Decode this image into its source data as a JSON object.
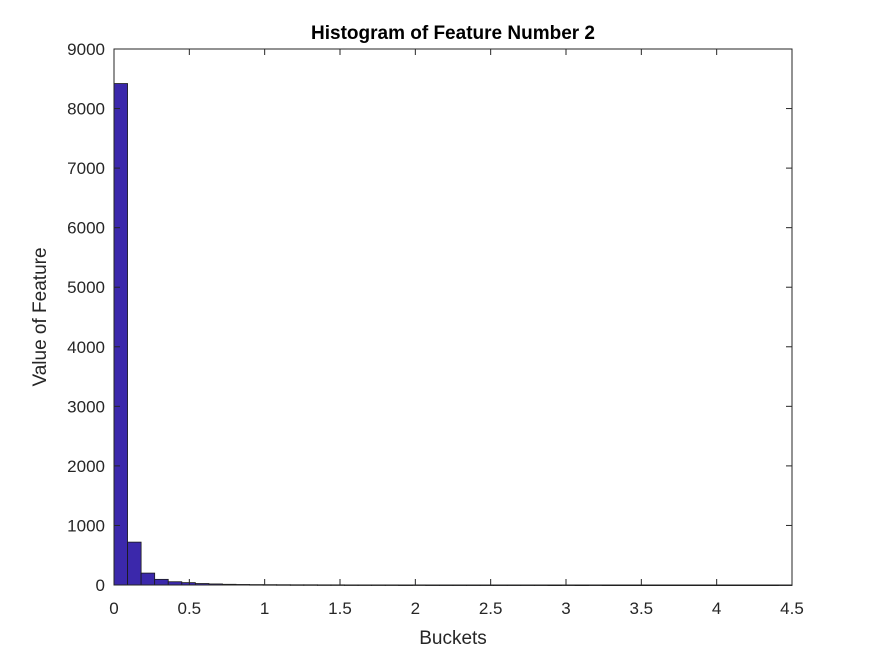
{
  "chart_data": {
    "type": "bar",
    "title": "Histogram of Feature Number 2",
    "xlabel": "Buckets",
    "ylabel": "Value of Feature",
    "xlim": [
      0,
      4.5
    ],
    "ylim": [
      0,
      9000
    ],
    "xticks": [
      "0",
      "0.5",
      "1",
      "1.5",
      "2",
      "2.5",
      "3",
      "3.5",
      "4",
      "4.5"
    ],
    "yticks": [
      "0",
      "1000",
      "2000",
      "3000",
      "4000",
      "5000",
      "6000",
      "7000",
      "8000",
      "9000"
    ],
    "bin_width": 0.09,
    "bin_edges_start": 0,
    "values": [
      8420,
      720,
      200,
      95,
      55,
      40,
      25,
      18,
      12,
      9,
      7,
      6,
      5,
      4,
      4,
      3,
      3,
      2,
      2,
      2,
      2,
      1,
      2,
      1,
      1,
      1,
      1,
      1,
      1,
      1,
      1,
      1,
      0,
      1,
      0,
      1,
      0,
      0,
      0,
      0,
      0,
      0,
      0,
      0,
      0,
      0,
      0,
      0,
      0,
      1
    ],
    "bar_color": "#3b28ab",
    "edge_color": "#1a1a1a",
    "grid": false
  }
}
